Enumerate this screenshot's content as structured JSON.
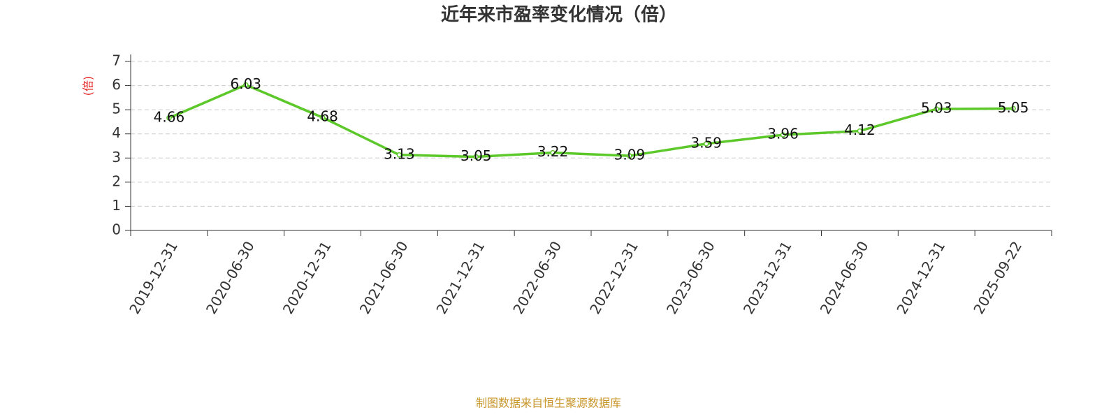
{
  "chart_data": {
    "type": "line",
    "title": "近年来市盈率变化情况（倍）",
    "y_label": "(倍)",
    "categories": [
      "2019-12-31",
      "2020-06-30",
      "2020-12-31",
      "2021-06-30",
      "2021-12-31",
      "2022-06-30",
      "2022-12-31",
      "2023-06-30",
      "2023-12-31",
      "2024-06-30",
      "2024-12-31",
      "2025-09-22"
    ],
    "values": [
      4.66,
      6.03,
      4.68,
      3.13,
      3.05,
      3.22,
      3.09,
      3.59,
      3.96,
      4.12,
      5.03,
      5.05
    ],
    "color": "#5cc82a",
    "ylim": [
      0,
      7
    ],
    "yticks": [
      0,
      1,
      2,
      3,
      4,
      5,
      6,
      7
    ],
    "grid": true,
    "source": "制图数据来自恒生聚源数据库"
  }
}
